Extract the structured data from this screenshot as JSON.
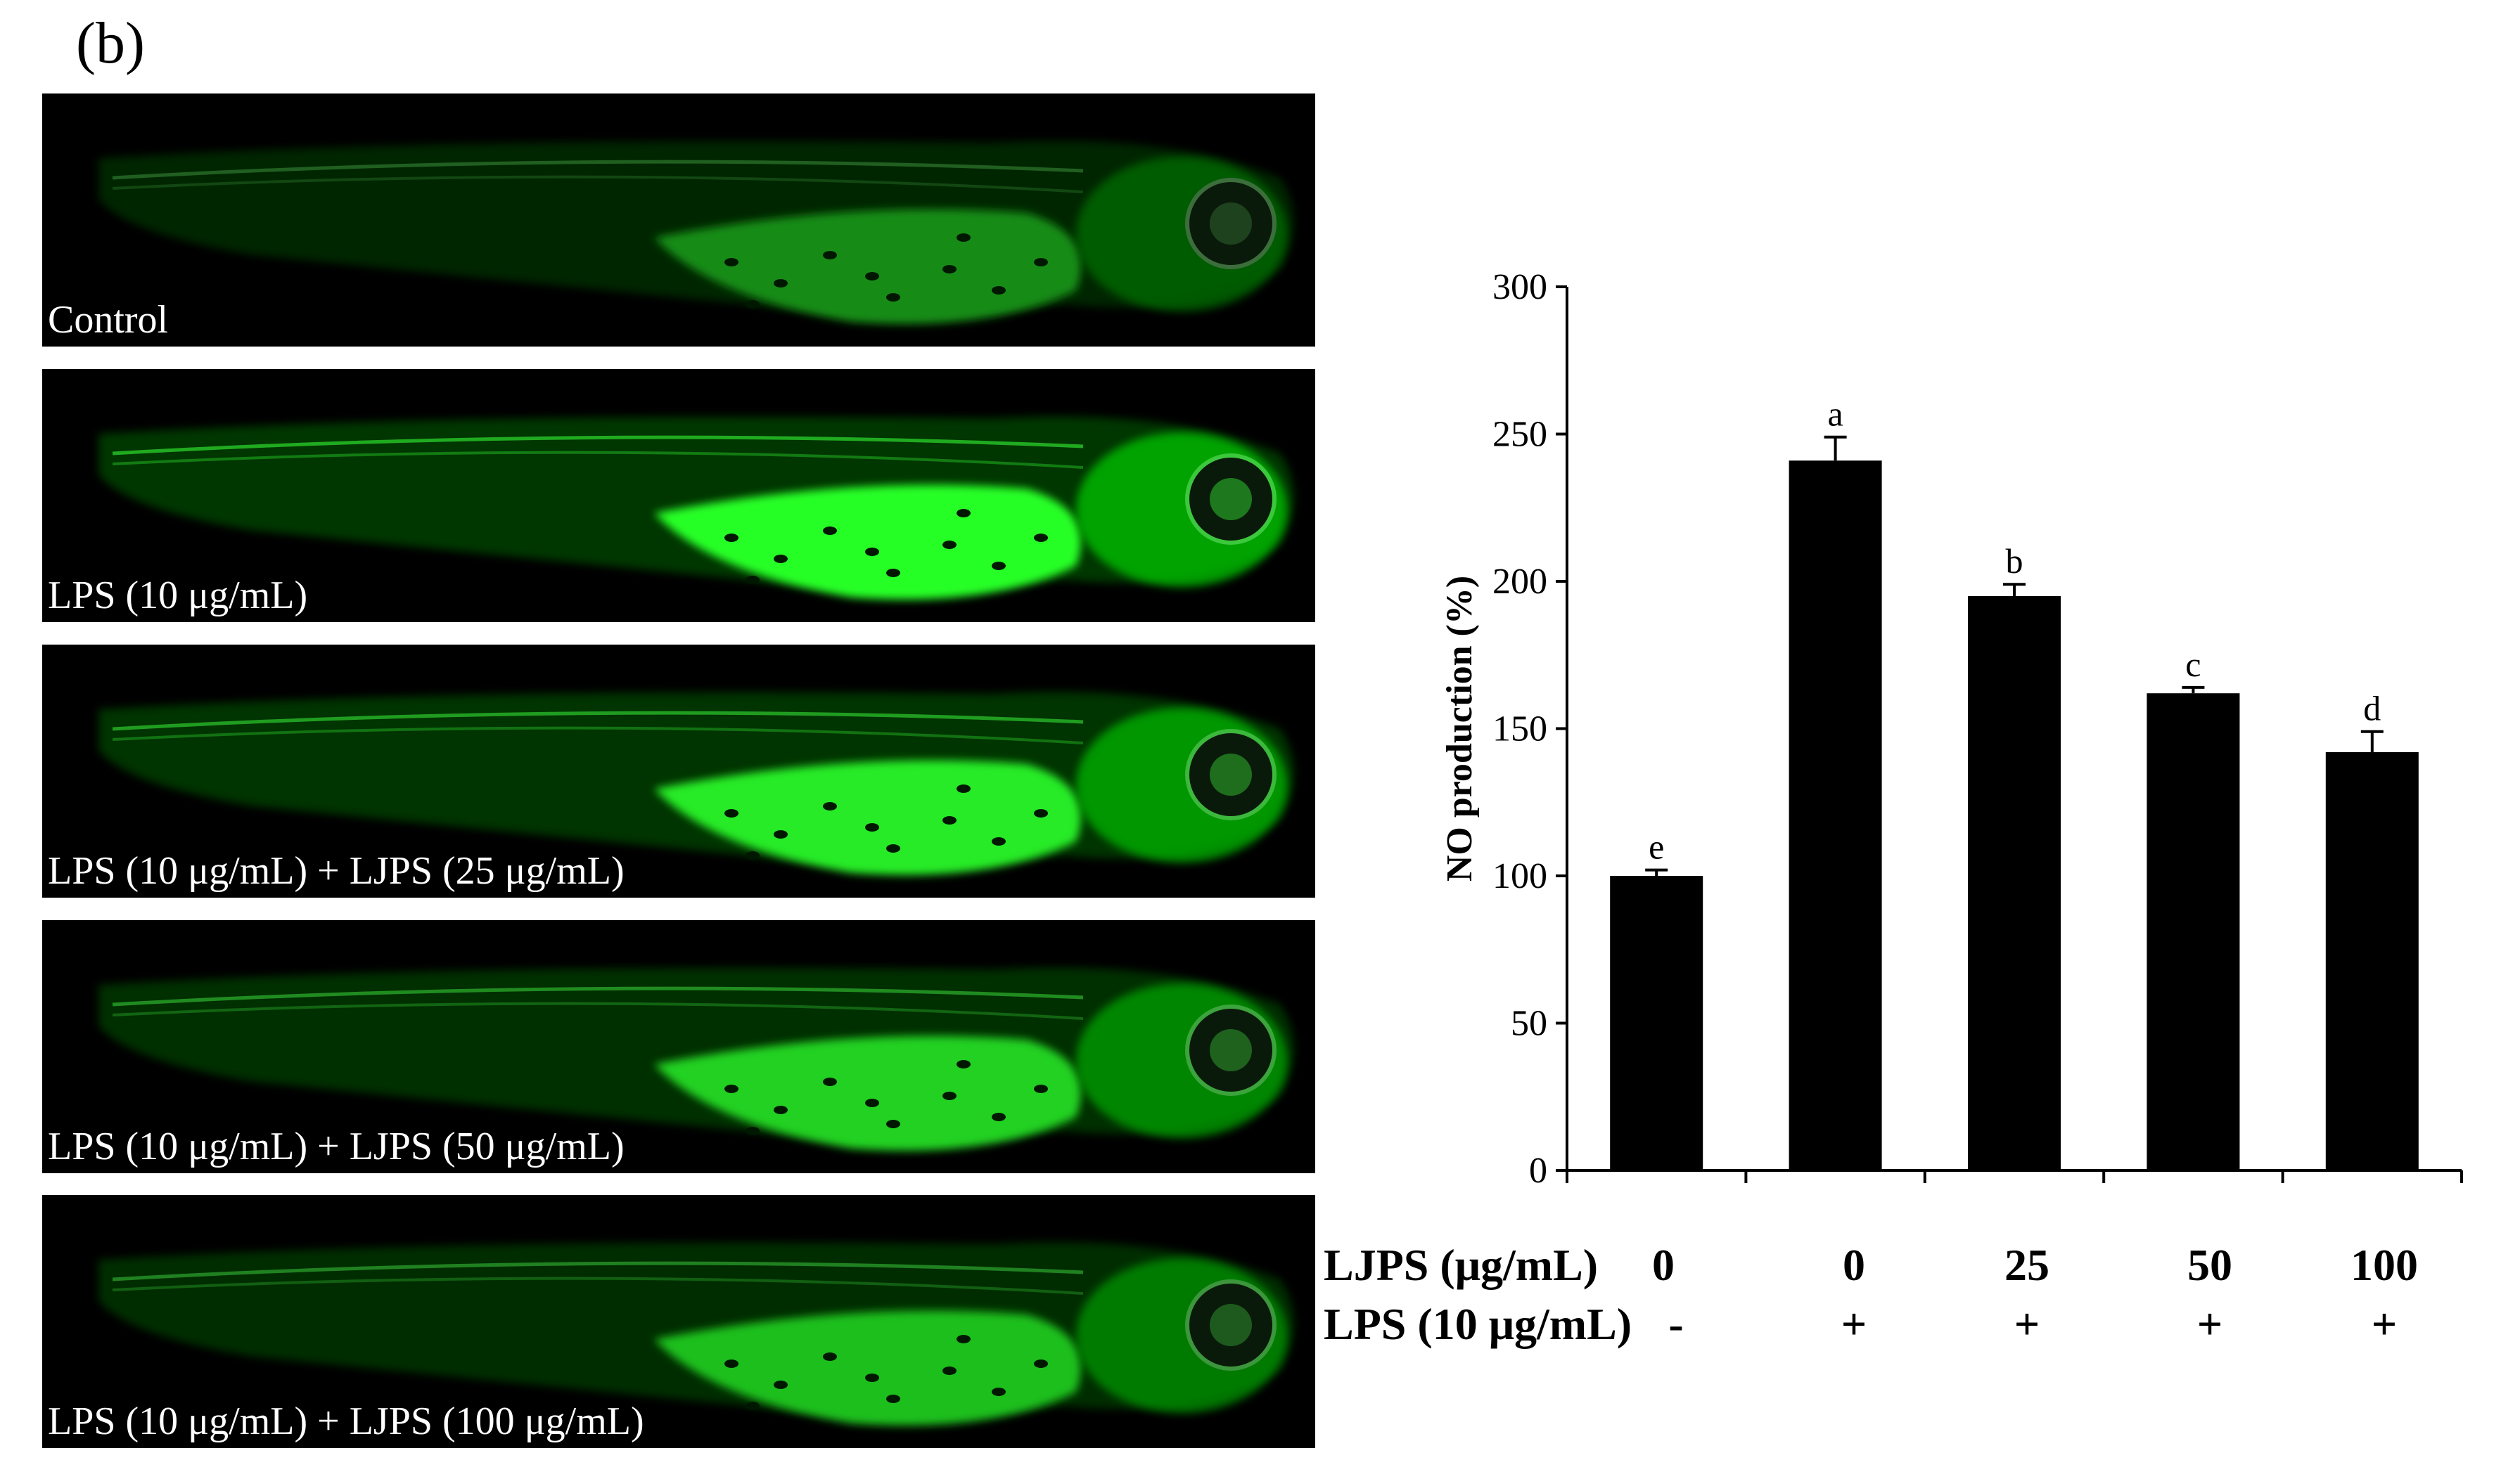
{
  "panel_label": "(b)",
  "images": [
    {
      "caption": "Control",
      "glow": 0.55
    },
    {
      "caption": "LPS (10 μg/mL)",
      "glow": 1.0
    },
    {
      "caption": "LPS (10 μg/mL) + LJPS (25 μg/mL)",
      "glow": 0.92
    },
    {
      "caption": "LPS (10 μg/mL) + LJPS (50 μg/mL)",
      "glow": 0.82
    },
    {
      "caption": "LPS (10 μg/mL) + LJPS (100 μg/mL)",
      "glow": 0.75
    }
  ],
  "chart_data": {
    "type": "bar",
    "ylabel": "NO production (%)",
    "ylim": [
      0,
      300
    ],
    "yticks": [
      0,
      50,
      100,
      150,
      200,
      250,
      300
    ],
    "series": [
      {
        "values": [
          100,
          241,
          195,
          162,
          142
        ],
        "errors": [
          2,
          8,
          4,
          2,
          7
        ],
        "significance": [
          "e",
          "a",
          "b",
          "c",
          "d"
        ]
      }
    ],
    "bar_color": "#000000"
  },
  "table": {
    "row1_label": "LJPS (μg/mL)",
    "row1_values": [
      "0",
      "0",
      "25",
      "50",
      "100"
    ],
    "row2_label": "LPS (10 μg/mL)",
    "row2_values": [
      "-",
      "+",
      "+",
      "+",
      "+"
    ]
  }
}
